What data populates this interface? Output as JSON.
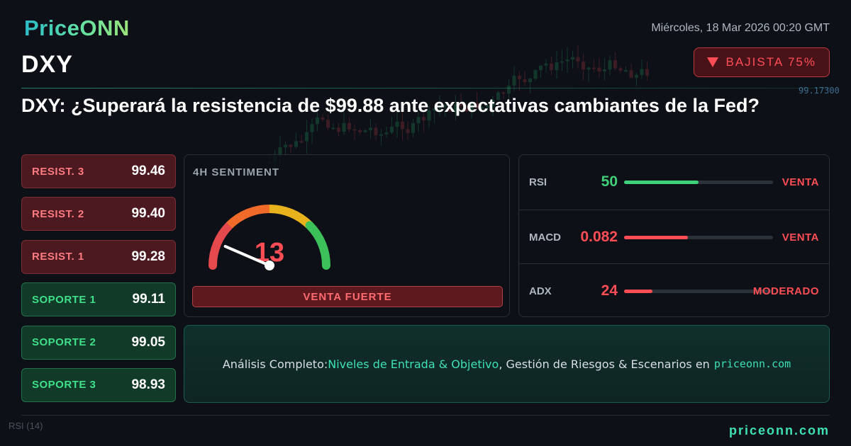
{
  "brand": {
    "logo": "PriceONN",
    "footer_site": "priceonn.com"
  },
  "header": {
    "date": "Miércoles, 18 Mar 2026 00:20 GMT",
    "ticker": "DXY",
    "bias_label": "BAJISTA 75%",
    "bias_color": "#ff4d55"
  },
  "headline": "DXY: ¿Superará la resistencia de $99.88 ante expectativas cambiantes de la Fed?",
  "levels": [
    {
      "label": "RESIST. 3",
      "value": "99.46",
      "kind": "resistance"
    },
    {
      "label": "RESIST. 2",
      "value": "99.40",
      "kind": "resistance"
    },
    {
      "label": "RESIST. 1",
      "value": "99.28",
      "kind": "resistance"
    },
    {
      "label": "SOPORTE 1",
      "value": "99.11",
      "kind": "support"
    },
    {
      "label": "SOPORTE 2",
      "value": "99.05",
      "kind": "support"
    },
    {
      "label": "SOPORTE 3",
      "value": "98.93",
      "kind": "support"
    }
  ],
  "sentiment": {
    "title": "4H SENTIMENT",
    "score": 13,
    "max": 100,
    "label": "VENTA FUERTE"
  },
  "indicators": [
    {
      "name": "RSI",
      "value": "50",
      "fill": 0.5,
      "signal": "VENTA",
      "value_color": "#3fd07a",
      "bar_color": "#3fd07a",
      "signal_color": "#ff4d55"
    },
    {
      "name": "MACD",
      "value": "0.082",
      "fill": 0.43,
      "signal": "VENTA",
      "value_color": "#ff4d55",
      "bar_color": "#ff4d55",
      "signal_color": "#ff4d55"
    },
    {
      "name": "ADX",
      "value": "24",
      "fill": 0.19,
      "signal": "MODERADO",
      "value_color": "#ff4d55",
      "bar_color": "#ff4d55",
      "signal_color": "#ff4d55"
    }
  ],
  "cta": {
    "prefix": "Análisis Completo: ",
    "highlight": "Niveles de Entrada & Objetivo",
    "suffix": ", Gestión de Riesgos & Escenarios en",
    "site": "priceonn.com"
  },
  "background_chart": {
    "price_label": "99.17300",
    "indicator_label": "RSI",
    "indicator_period": "(14)"
  }
}
